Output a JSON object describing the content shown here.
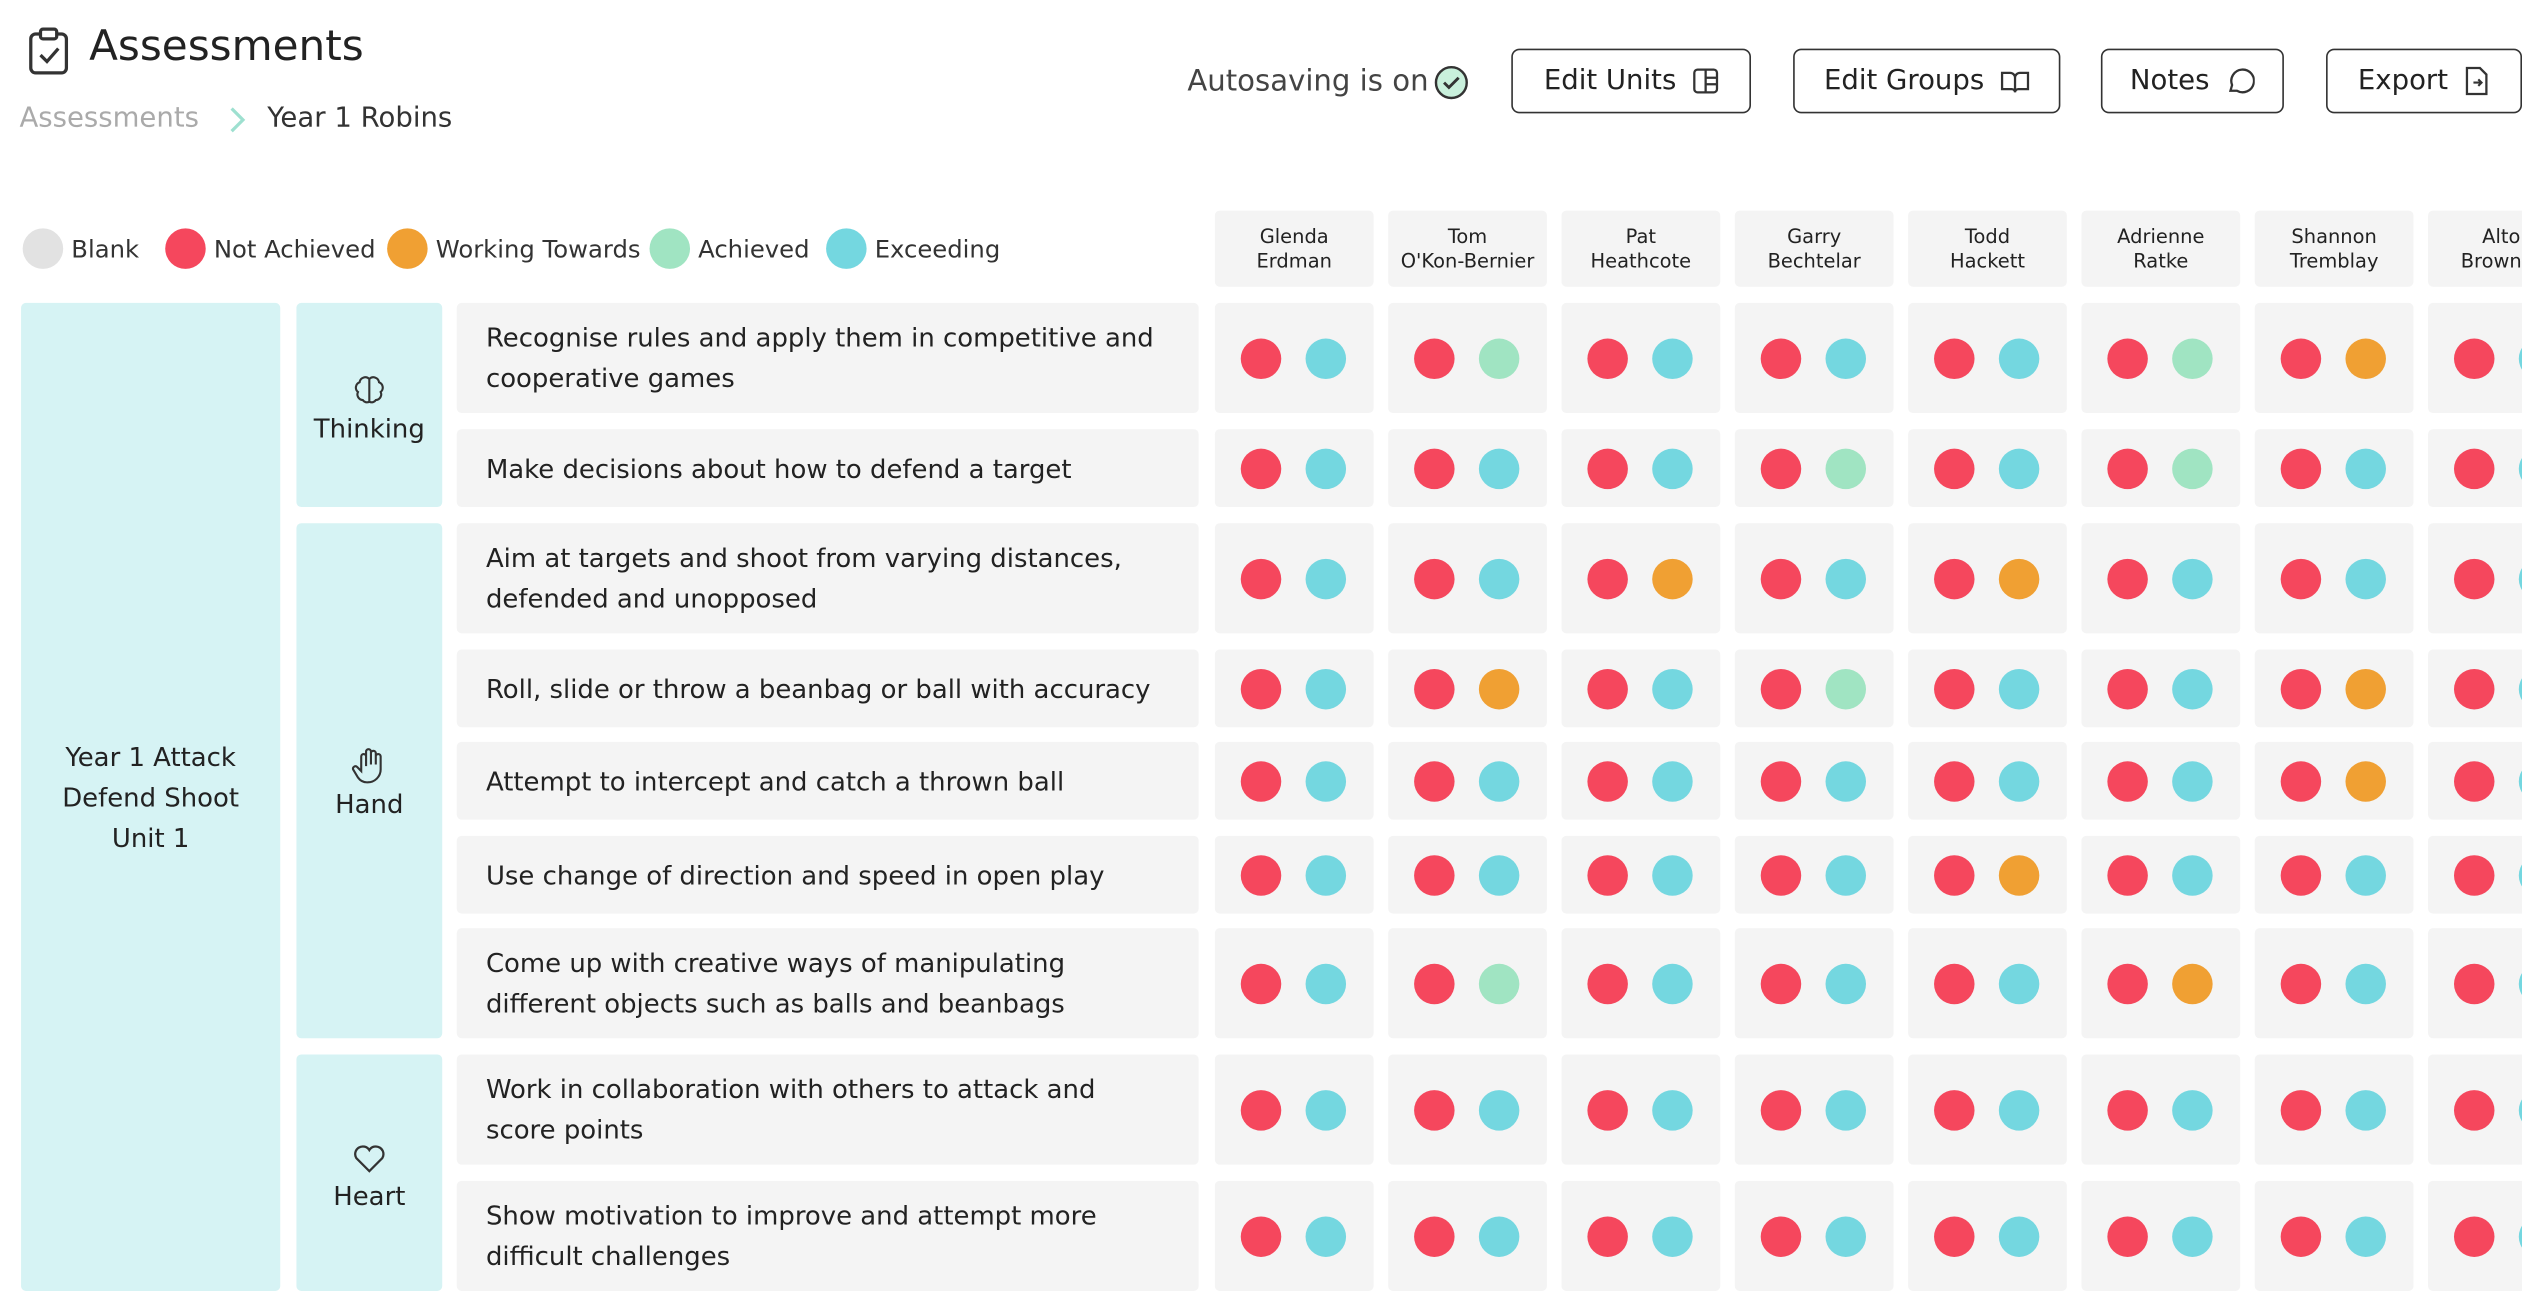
{
  "header": {
    "title": "Assessments",
    "breadcrumb": [
      "Assessments",
      "Year 1 Robins"
    ],
    "autosave": "Autosaving is on",
    "buttons": [
      "Edit Units",
      "Edit Groups",
      "Notes",
      "Export"
    ]
  },
  "legend": [
    {
      "label": "Blank",
      "color": "#e2e2e2"
    },
    {
      "label": "Not Achieved",
      "color": "#f5475d"
    },
    {
      "label": "Working Towards",
      "color": "#f0a033"
    },
    {
      "label": "Achieved",
      "color": "#a0e4c2"
    },
    {
      "label": "Exceeding",
      "color": "#74d7e0"
    }
  ],
  "students": [
    {
      "first": "Glenda",
      "last": "Erdman"
    },
    {
      "first": "Tom",
      "last": "O'Kon-Bernier"
    },
    {
      "first": "Pat",
      "last": "Heathcote"
    },
    {
      "first": "Garry",
      "last": "Bechtelar"
    },
    {
      "first": "Todd",
      "last": "Hackett"
    },
    {
      "first": "Adrienne",
      "last": "Ratke"
    },
    {
      "first": "Shannon",
      "last": "Tremblay"
    },
    {
      "first": "Alton",
      "last": "Brown-Co"
    }
  ],
  "unit": {
    "title": "Year 1 Attack Defend Shoot Unit 1",
    "groups": [
      {
        "name": "Thinking",
        "objectives": [
          {
            "text": "Recognise rules and apply them in competitive and cooperative games",
            "results": [
              [
                "Not Achieved",
                "Exceeding"
              ],
              [
                "Not Achieved",
                "Achieved"
              ],
              [
                "Not Achieved",
                "Exceeding"
              ],
              [
                "Not Achieved",
                "Exceeding"
              ],
              [
                "Not Achieved",
                "Exceeding"
              ],
              [
                "Not Achieved",
                "Achieved"
              ],
              [
                "Not Achieved",
                "Working Towards"
              ],
              [
                "Not Achieved",
                "Exceeding"
              ]
            ]
          },
          {
            "text": "Make decisions about how to defend a target",
            "results": [
              [
                "Not Achieved",
                "Exceeding"
              ],
              [
                "Not Achieved",
                "Exceeding"
              ],
              [
                "Not Achieved",
                "Exceeding"
              ],
              [
                "Not Achieved",
                "Achieved"
              ],
              [
                "Not Achieved",
                "Exceeding"
              ],
              [
                "Not Achieved",
                "Achieved"
              ],
              [
                "Not Achieved",
                "Exceeding"
              ],
              [
                "Not Achieved",
                "Exceeding"
              ]
            ]
          }
        ]
      },
      {
        "name": "Hand",
        "objectives": [
          {
            "text": "Aim at targets and shoot from varying distances, defended and unopposed",
            "results": [
              [
                "Not Achieved",
                "Exceeding"
              ],
              [
                "Not Achieved",
                "Exceeding"
              ],
              [
                "Not Achieved",
                "Working Towards"
              ],
              [
                "Not Achieved",
                "Exceeding"
              ],
              [
                "Not Achieved",
                "Working Towards"
              ],
              [
                "Not Achieved",
                "Exceeding"
              ],
              [
                "Not Achieved",
                "Exceeding"
              ],
              [
                "Not Achieved",
                "Exceeding"
              ]
            ]
          },
          {
            "text": "Roll, slide or throw a beanbag or ball with accuracy",
            "results": [
              [
                "Not Achieved",
                "Exceeding"
              ],
              [
                "Not Achieved",
                "Working Towards"
              ],
              [
                "Not Achieved",
                "Exceeding"
              ],
              [
                "Not Achieved",
                "Achieved"
              ],
              [
                "Not Achieved",
                "Exceeding"
              ],
              [
                "Not Achieved",
                "Exceeding"
              ],
              [
                "Not Achieved",
                "Working Towards"
              ],
              [
                "Not Achieved",
                "Exceeding"
              ]
            ]
          },
          {
            "text": "Attempt to intercept and catch a thrown ball",
            "results": [
              [
                "Not Achieved",
                "Exceeding"
              ],
              [
                "Not Achieved",
                "Exceeding"
              ],
              [
                "Not Achieved",
                "Exceeding"
              ],
              [
                "Not Achieved",
                "Exceeding"
              ],
              [
                "Not Achieved",
                "Exceeding"
              ],
              [
                "Not Achieved",
                "Exceeding"
              ],
              [
                "Not Achieved",
                "Working Towards"
              ],
              [
                "Not Achieved",
                "Exceeding"
              ]
            ]
          },
          {
            "text": "Use change of direction and speed in open play",
            "results": [
              [
                "Not Achieved",
                "Exceeding"
              ],
              [
                "Not Achieved",
                "Exceeding"
              ],
              [
                "Not Achieved",
                "Exceeding"
              ],
              [
                "Not Achieved",
                "Exceeding"
              ],
              [
                "Not Achieved",
                "Working Towards"
              ],
              [
                "Not Achieved",
                "Exceeding"
              ],
              [
                "Not Achieved",
                "Exceeding"
              ],
              [
                "Not Achieved",
                "Exceeding"
              ]
            ]
          },
          {
            "text": "Come up with creative ways of manipulating different objects such as balls and beanbags",
            "results": [
              [
                "Not Achieved",
                "Exceeding"
              ],
              [
                "Not Achieved",
                "Achieved"
              ],
              [
                "Not Achieved",
                "Exceeding"
              ],
              [
                "Not Achieved",
                "Exceeding"
              ],
              [
                "Not Achieved",
                "Exceeding"
              ],
              [
                "Not Achieved",
                "Working Towards"
              ],
              [
                "Not Achieved",
                "Exceeding"
              ],
              [
                "Not Achieved",
                "Exceeding"
              ]
            ]
          }
        ]
      },
      {
        "name": "Heart",
        "objectives": [
          {
            "text": "Work in collaboration with others to attack and score points",
            "results": [
              [
                "Not Achieved",
                "Exceeding"
              ],
              [
                "Not Achieved",
                "Exceeding"
              ],
              [
                "Not Achieved",
                "Exceeding"
              ],
              [
                "Not Achieved",
                "Exceeding"
              ],
              [
                "Not Achieved",
                "Exceeding"
              ],
              [
                "Not Achieved",
                "Exceeding"
              ],
              [
                "Not Achieved",
                "Exceeding"
              ],
              [
                "Not Achieved",
                "Exceeding"
              ]
            ]
          },
          {
            "text": "Show motivation to improve and attempt more difficult challenges",
            "results": [
              [
                "Not Achieved",
                "Exceeding"
              ],
              [
                "Not Achieved",
                "Exceeding"
              ],
              [
                "Not Achieved",
                "Exceeding"
              ],
              [
                "Not Achieved",
                "Exceeding"
              ],
              [
                "Not Achieved",
                "Exceeding"
              ],
              [
                "Not Achieved",
                "Exceeding"
              ],
              [
                "Not Achieved",
                "Exceeding"
              ],
              [
                "Not Achieved",
                "Exceeding"
              ]
            ]
          }
        ]
      }
    ]
  }
}
